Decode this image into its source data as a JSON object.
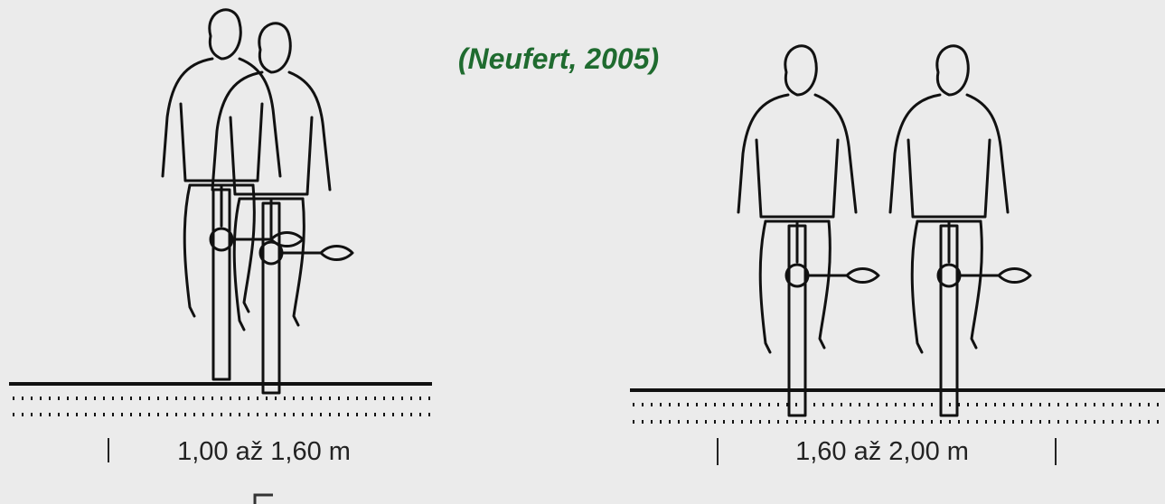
{
  "citation": "(Neufert, 2005)",
  "panels": [
    {
      "width_label": "1,00 až 1,60 m"
    },
    {
      "width_label": "1,60 až 2,00 m"
    }
  ]
}
